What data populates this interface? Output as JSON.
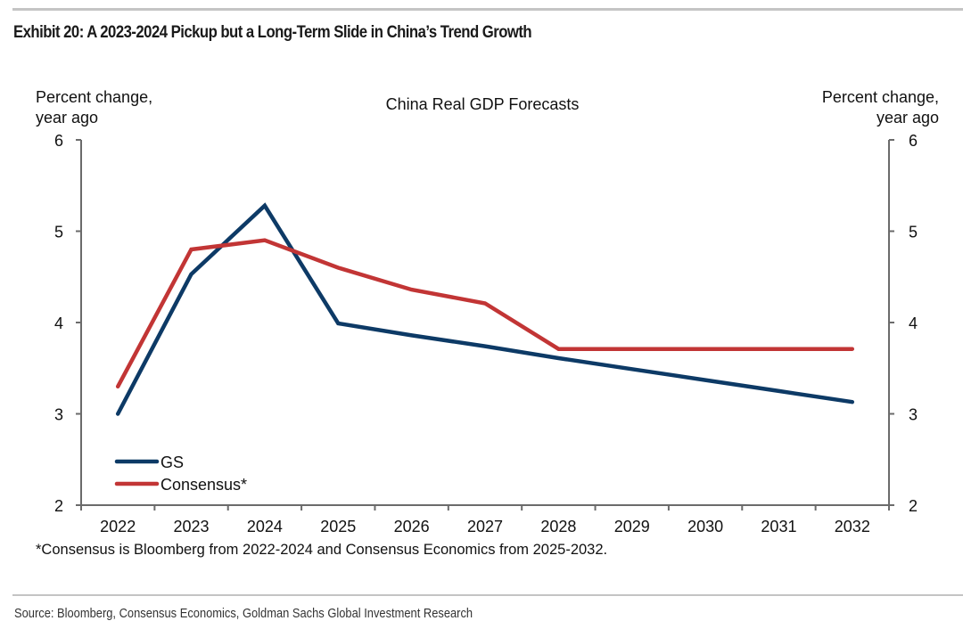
{
  "exhibit": {
    "title": "Exhibit 20: A 2023-2024 Pickup but a Long-Term Slide in China’s Trend Growth",
    "source": "Source: Bloomberg, Consensus Economics, Goldman Sachs Global Investment Research"
  },
  "chart_data": {
    "type": "line",
    "title": "China Real GDP Forecasts",
    "xlabel": "",
    "ylabel_left": [
      "Percent change,",
      "year ago"
    ],
    "ylabel_right": [
      "Percent change,",
      "year ago"
    ],
    "x": [
      "2022",
      "2023",
      "2024",
      "2025",
      "2026",
      "2027",
      "2028",
      "2029",
      "2030",
      "2031",
      "2032"
    ],
    "ylim": [
      2,
      6
    ],
    "yticks": [
      "2",
      "3",
      "4",
      "5",
      "6"
    ],
    "grid": false,
    "legend_position": "bottom-left",
    "series": [
      {
        "name": "GS",
        "color": "#0d3a66",
        "values": [
          3.0,
          4.53,
          5.28,
          3.99,
          3.86,
          3.74,
          3.61,
          3.49,
          3.37,
          3.25,
          3.13
        ]
      },
      {
        "name": "Consensus*",
        "color": "#c23535",
        "values": [
          3.3,
          4.8,
          4.9,
          4.6,
          4.36,
          4.21,
          3.71,
          3.71,
          3.71,
          3.71,
          3.71
        ]
      }
    ],
    "footnote": "*Consensus is Bloomberg from 2022-2024 and Consensus Economics from 2025-2032."
  }
}
